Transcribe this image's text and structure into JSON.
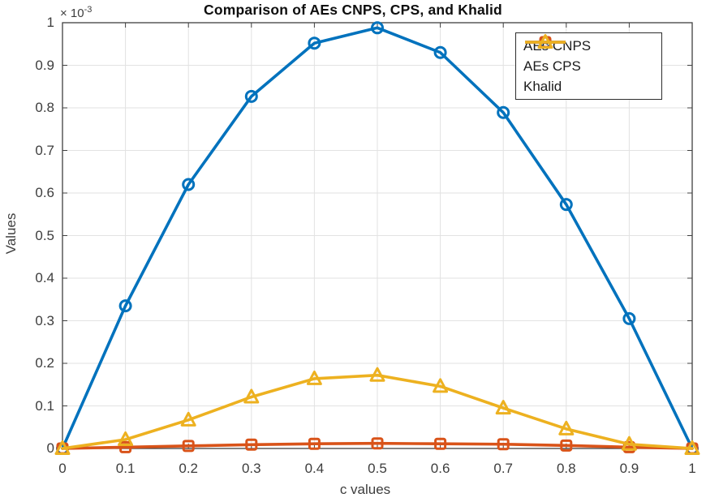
{
  "chart_data": {
    "type": "line",
    "title": "Comparison of AEs CNPS, CPS, and Khalid",
    "xlabel": "c values",
    "ylabel": "Values",
    "y_axis_exponent_prefix": "× 10",
    "y_axis_exponent": "-3",
    "y_unit_multiplier": 0.001,
    "note": "series values are in units of 1e-3 (match the ×10^-3 axis factor)",
    "x": [
      0,
      0.1,
      0.2,
      0.3,
      0.4,
      0.5,
      0.6,
      0.7,
      0.8,
      0.9,
      1
    ],
    "series": [
      {
        "name": "AEs CNPS",
        "color": "#0072BD",
        "marker": "circle",
        "values_x1e3": [
          0,
          0.335,
          0.62,
          0.827,
          0.952,
          0.988,
          0.93,
          0.789,
          0.573,
          0.305,
          0
        ]
      },
      {
        "name": "AEs CPS",
        "color": "#D95319",
        "marker": "square",
        "values_x1e3": [
          0,
          0.003,
          0.006,
          0.009,
          0.011,
          0.012,
          0.011,
          0.01,
          0.007,
          0.003,
          0
        ]
      },
      {
        "name": "Khalid",
        "color": "#EDB120",
        "marker": "triangle",
        "values_x1e3": [
          0,
          0.021,
          0.067,
          0.121,
          0.164,
          0.172,
          0.146,
          0.095,
          0.046,
          0.01,
          0
        ]
      }
    ],
    "xlim": [
      0,
      1
    ],
    "ylim_x1e3": [
      0,
      1
    ],
    "xtick_labels": [
      "0",
      "0.1",
      "0.2",
      "0.3",
      "0.4",
      "0.5",
      "0.6",
      "0.7",
      "0.8",
      "0.9",
      "1"
    ],
    "ytick_labels": [
      "0",
      "0.1",
      "0.2",
      "0.3",
      "0.4",
      "0.5",
      "0.6",
      "0.7",
      "0.8",
      "0.9",
      "1"
    ],
    "grid": true,
    "legend_position": "upper-right",
    "colors": {
      "grid": "#e2e2e2",
      "axis_box": "#404040",
      "tick_text": "#3d3d3d",
      "title_text": "#0e0e0e",
      "background": "#ffffff"
    }
  }
}
